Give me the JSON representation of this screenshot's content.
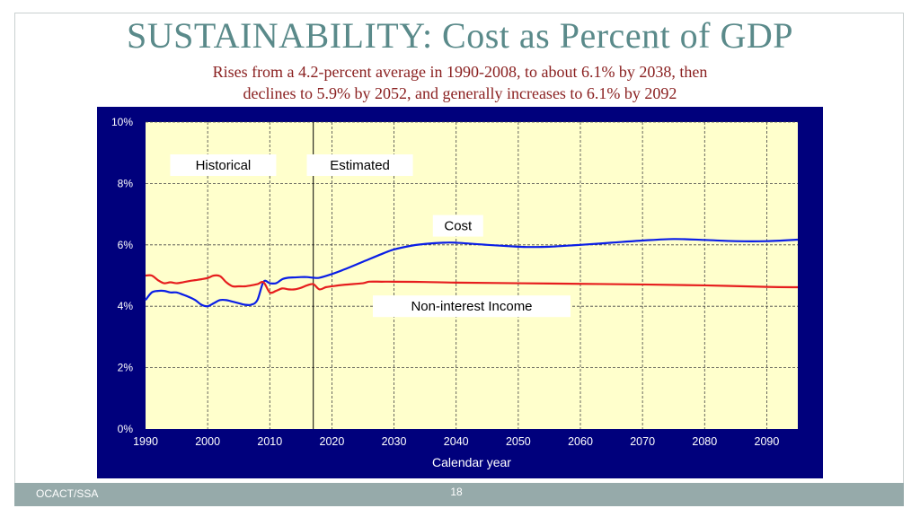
{
  "title": "SUSTAINABILITY:  Cost as Percent of GDP",
  "subtitle_line1": "Rises from a 4.2-percent average in 1990-2008, to about 6.1% by 2038, then",
  "subtitle_line2": "declines to 5.9% by 2052, and generally increases to 6.1% by 2092",
  "footer": {
    "source": "OCACT/SSA",
    "page_number": "18"
  },
  "colors": {
    "title": "#5a8a8a",
    "subtitle": "#8a2020",
    "panel": "#00007c",
    "plot_bg": "#ffffcc",
    "cost": "#0a1ee6",
    "income": "#e61e1e",
    "footer": "#96aaaa"
  },
  "chart_data": {
    "type": "line",
    "xlabel": "Calendar year",
    "ylabel": "",
    "xlim": [
      1990,
      2095
    ],
    "ylim": [
      0,
      10
    ],
    "x_ticks": [
      1990,
      2000,
      2010,
      2020,
      2030,
      2040,
      2050,
      2060,
      2070,
      2080,
      2090
    ],
    "x_tick_labels": [
      "1990",
      "2000",
      "2010",
      "2020",
      "2030",
      "2040",
      "2050",
      "2060",
      "2070",
      "2080",
      "2090"
    ],
    "y_ticks": [
      0,
      2,
      4,
      6,
      8,
      10
    ],
    "y_tick_labels": [
      "0%",
      "2%",
      "4%",
      "6%",
      "8%",
      "10%"
    ],
    "grid": true,
    "divider_year": 2017,
    "region_labels": [
      "Historical",
      "Estimated"
    ],
    "series": [
      {
        "name": "Cost",
        "x": [
          1990,
          1991,
          1992,
          1993,
          1994,
          1995,
          1996,
          1997,
          1998,
          1999,
          2000,
          2001,
          2002,
          2003,
          2004,
          2005,
          2006,
          2007,
          2008,
          2009,
          2010,
          2011,
          2012,
          2013,
          2014,
          2015,
          2016,
          2017,
          2018,
          2020,
          2022,
          2025,
          2028,
          2030,
          2033,
          2035,
          2038,
          2040,
          2045,
          2050,
          2052,
          2055,
          2060,
          2065,
          2070,
          2075,
          2080,
          2085,
          2090,
          2095
        ],
        "values": [
          4.2,
          4.45,
          4.5,
          4.5,
          4.45,
          4.45,
          4.38,
          4.3,
          4.2,
          4.05,
          4.0,
          4.1,
          4.2,
          4.2,
          4.15,
          4.1,
          4.05,
          4.05,
          4.2,
          4.8,
          4.75,
          4.75,
          4.88,
          4.93,
          4.94,
          4.95,
          4.95,
          4.93,
          4.93,
          5.05,
          5.2,
          5.45,
          5.7,
          5.85,
          5.98,
          6.03,
          6.07,
          6.07,
          6.0,
          5.94,
          5.93,
          5.94,
          6.0,
          6.07,
          6.14,
          6.19,
          6.16,
          6.12,
          6.12,
          6.17
        ]
      },
      {
        "name": "Non-interest Income",
        "x": [
          1990,
          1991,
          1992,
          1993,
          1994,
          1995,
          1996,
          1997,
          1998,
          1999,
          2000,
          2001,
          2002,
          2003,
          2004,
          2005,
          2006,
          2007,
          2008,
          2009,
          2010,
          2011,
          2012,
          2013,
          2014,
          2015,
          2016,
          2017,
          2018,
          2019,
          2020,
          2022,
          2025,
          2026,
          2028,
          2030,
          2035,
          2040,
          2050,
          2060,
          2070,
          2080,
          2090,
          2095
        ],
        "values": [
          5.0,
          5.0,
          4.85,
          4.75,
          4.78,
          4.75,
          4.78,
          4.82,
          4.85,
          4.88,
          4.92,
          5.0,
          4.98,
          4.78,
          4.65,
          4.65,
          4.65,
          4.68,
          4.72,
          4.78,
          4.45,
          4.5,
          4.58,
          4.55,
          4.55,
          4.6,
          4.68,
          4.72,
          4.55,
          4.62,
          4.65,
          4.7,
          4.75,
          4.8,
          4.8,
          4.8,
          4.79,
          4.77,
          4.75,
          4.73,
          4.71,
          4.68,
          4.63,
          4.62
        ]
      }
    ],
    "annotations": [
      "Cost",
      "Non-interest Income"
    ]
  }
}
